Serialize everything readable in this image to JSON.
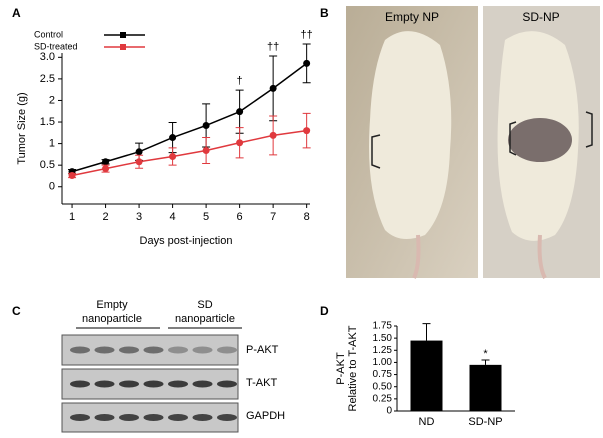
{
  "panel_labels": [
    "A",
    "B",
    "C",
    "D"
  ],
  "photos": {
    "labels": [
      "Empty NP",
      "SD-NP"
    ]
  },
  "blot": {
    "groups": [
      [
        "Empty",
        "nanoparticle"
      ],
      [
        "SD",
        "nanoparticle"
      ]
    ],
    "rows": [
      "P-AKT",
      "T-AKT",
      "GAPDH"
    ]
  },
  "chart_data": [
    {
      "type": "line",
      "ylabel": "Tumor Size (g)",
      "xlabel": "Days post-injection",
      "x": [
        1,
        2,
        3,
        4,
        5,
        6,
        7,
        8
      ],
      "xlim": [
        0.7,
        8.1
      ],
      "xticks": [
        1,
        2,
        3,
        4,
        5,
        6,
        7,
        8
      ],
      "ylim": [
        -0.4,
        3.1
      ],
      "yticks": [
        0,
        0.5,
        1.0,
        1.5,
        2.0,
        2.5,
        {
          "value": 3,
          "label": "3.0"
        }
      ],
      "series": [
        {
          "name": "Control",
          "color": "#000000",
          "values": [
            0.35,
            0.58,
            0.81,
            1.14,
            1.42,
            1.74,
            2.28,
            2.86
          ],
          "errors": [
            0.05,
            0.05,
            0.2,
            0.35,
            0.5,
            0.5,
            0.75,
            0.45
          ]
        },
        {
          "name": "SD-treated",
          "color": "#e0393e",
          "values": [
            0.26,
            0.42,
            0.58,
            0.7,
            0.84,
            1.02,
            1.19,
            1.3
          ],
          "errors": [
            0.05,
            0.08,
            0.15,
            0.2,
            0.3,
            0.35,
            0.45,
            0.4
          ]
        }
      ],
      "annotations": [
        {
          "x": 6,
          "label": "†"
        },
        {
          "x": 7,
          "label": "††"
        },
        {
          "x": 8,
          "label": "††"
        }
      ]
    },
    {
      "type": "bar",
      "ylabel": [
        "P-AKT",
        "Relative to T-AKT"
      ],
      "categories": [
        "ND",
        "SD-NP"
      ],
      "values": [
        1.45,
        0.95
      ],
      "errors": [
        0.35,
        0.1
      ],
      "color": "#000000",
      "ylim": [
        0,
        1.75
      ],
      "yticks": [
        0,
        0.25,
        {
          "value": 0.5,
          "label": "0.50"
        },
        0.75,
        {
          "value": 1,
          "label": "1.00"
        },
        1.25,
        {
          "value": 1.5,
          "label": "1.50"
        },
        1.75
      ],
      "annotations": [
        {
          "category": 1,
          "label": "*"
        }
      ]
    }
  ]
}
